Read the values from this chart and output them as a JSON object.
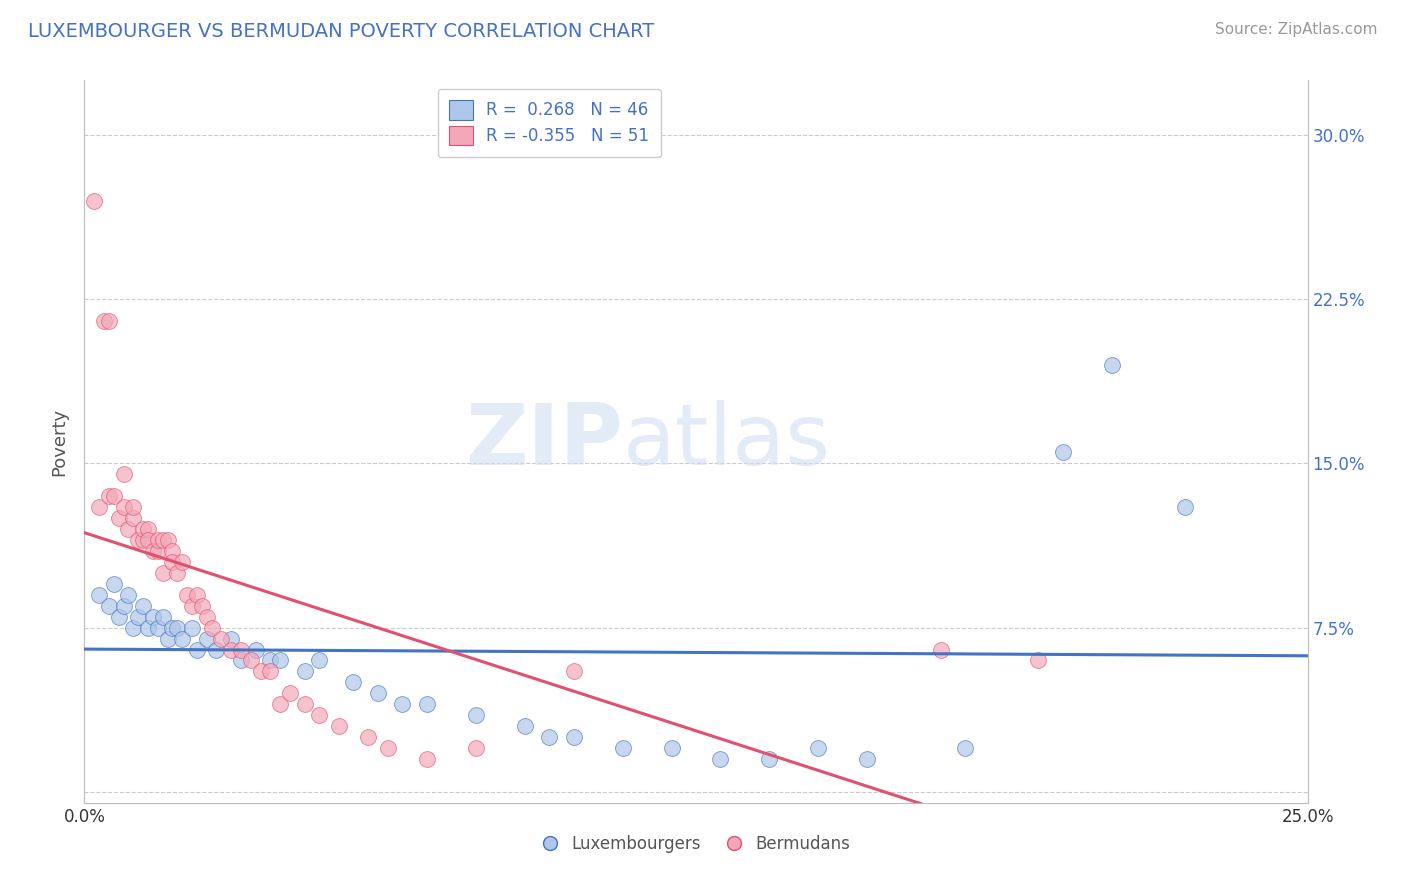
{
  "title": "LUXEMBOURGER VS BERMUDAN POVERTY CORRELATION CHART",
  "source_text": "Source: ZipAtlas.com",
  "ylabel": "Poverty",
  "xlim": [
    0.0,
    0.25
  ],
  "ylim": [
    -0.005,
    0.325
  ],
  "x_ticks": [
    0.0,
    0.05,
    0.1,
    0.15,
    0.2,
    0.25
  ],
  "x_tick_labels": [
    "0.0%",
    "",
    "",
    "",
    "",
    "25.0%"
  ],
  "y_ticks": [
    0.0,
    0.075,
    0.15,
    0.225,
    0.3
  ],
  "y_tick_labels_right": [
    "",
    "7.5%",
    "15.0%",
    "22.5%",
    "30.0%"
  ],
  "lux_R": "0.268",
  "lux_N": "46",
  "berm_R": "-0.355",
  "berm_N": "51",
  "lux_color": "#aec6e8",
  "berm_color": "#f2a8b8",
  "lux_line_color": "#4472C4",
  "berm_line_color": "#e05070",
  "grid_color": "#cccccc",
  "bg_color": "#ffffff",
  "lux_scatter_x": [
    0.003,
    0.005,
    0.006,
    0.007,
    0.008,
    0.009,
    0.01,
    0.011,
    0.012,
    0.013,
    0.014,
    0.015,
    0.016,
    0.017,
    0.018,
    0.019,
    0.02,
    0.022,
    0.023,
    0.025,
    0.027,
    0.03,
    0.032,
    0.035,
    0.038,
    0.04,
    0.045,
    0.048,
    0.055,
    0.06,
    0.065,
    0.07,
    0.08,
    0.09,
    0.095,
    0.1,
    0.11,
    0.12,
    0.13,
    0.14,
    0.15,
    0.16,
    0.18,
    0.2,
    0.21,
    0.225
  ],
  "lux_scatter_y": [
    0.09,
    0.085,
    0.095,
    0.08,
    0.085,
    0.09,
    0.075,
    0.08,
    0.085,
    0.075,
    0.08,
    0.075,
    0.08,
    0.07,
    0.075,
    0.075,
    0.07,
    0.075,
    0.065,
    0.07,
    0.065,
    0.07,
    0.06,
    0.065,
    0.06,
    0.06,
    0.055,
    0.06,
    0.05,
    0.045,
    0.04,
    0.04,
    0.035,
    0.03,
    0.025,
    0.025,
    0.02,
    0.02,
    0.015,
    0.015,
    0.02,
    0.015,
    0.02,
    0.155,
    0.195,
    0.13
  ],
  "berm_scatter_x": [
    0.002,
    0.003,
    0.004,
    0.005,
    0.005,
    0.006,
    0.007,
    0.008,
    0.008,
    0.009,
    0.01,
    0.01,
    0.011,
    0.012,
    0.012,
    0.013,
    0.013,
    0.014,
    0.015,
    0.015,
    0.016,
    0.016,
    0.017,
    0.018,
    0.018,
    0.019,
    0.02,
    0.021,
    0.022,
    0.023,
    0.024,
    0.025,
    0.026,
    0.028,
    0.03,
    0.032,
    0.034,
    0.036,
    0.038,
    0.04,
    0.042,
    0.045,
    0.048,
    0.052,
    0.058,
    0.062,
    0.07,
    0.08,
    0.1,
    0.175,
    0.195
  ],
  "berm_scatter_y": [
    0.27,
    0.13,
    0.215,
    0.215,
    0.135,
    0.135,
    0.125,
    0.13,
    0.145,
    0.12,
    0.125,
    0.13,
    0.115,
    0.115,
    0.12,
    0.12,
    0.115,
    0.11,
    0.11,
    0.115,
    0.115,
    0.1,
    0.115,
    0.11,
    0.105,
    0.1,
    0.105,
    0.09,
    0.085,
    0.09,
    0.085,
    0.08,
    0.075,
    0.07,
    0.065,
    0.065,
    0.06,
    0.055,
    0.055,
    0.04,
    0.045,
    0.04,
    0.035,
    0.03,
    0.025,
    0.02,
    0.015,
    0.02,
    0.055,
    0.065,
    0.06
  ],
  "watermark_zip": "ZIP",
  "watermark_atlas": "atlas",
  "legend_lux_label": "Luxembourgers",
  "legend_berm_label": "Bermudans"
}
